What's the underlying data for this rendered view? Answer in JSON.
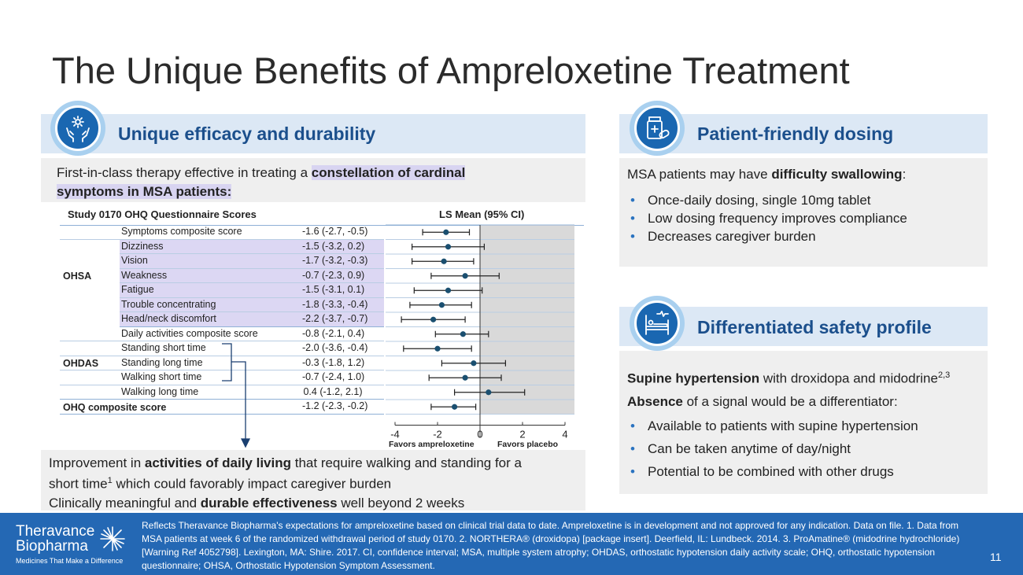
{
  "title": "The Unique Benefits of Ampreloxetine Treatment",
  "left_panel": {
    "header": "Unique efficacy and durability",
    "intro_prefix": "First-in-class therapy effective in treating a ",
    "intro_highlight_1": "constellation of cardinal",
    "intro_highlight_2": "symptoms in MSA patients:",
    "table_title": "Study 0170 OHQ Questionnaire Scores",
    "ls_mean_label": "LS Mean (95% CI)",
    "group_ohsa": "OHSA",
    "group_ohdas": "OHDAS",
    "composite_label": "OHQ composite score",
    "favors_left": "Favors ampreloxetine",
    "favors_right": "Favors placebo",
    "bottom_1_prefix": "Improvement in ",
    "bottom_1_bold": "activities of daily living",
    "bottom_1_suffix": " that require walking and standing for a",
    "bottom_1_line2": "short time",
    "bottom_1_sup": "1",
    "bottom_1_line2_suffix": " which could favorably impact caregiver burden",
    "bottom_2_prefix": "Clinically meaningful and ",
    "bottom_2_bold": "durable effectiveness",
    "bottom_2_suffix": " well beyond 2 weeks"
  },
  "chart_data": {
    "type": "forest",
    "title": "Study 0170 OHQ Questionnaire Scores",
    "xlabel": "LS Mean (95% CI)",
    "xlim": [
      -4,
      4
    ],
    "xticks": [
      "-4",
      "-2",
      "0",
      "2",
      "4"
    ],
    "rows": [
      {
        "group": "OHSA",
        "label": "Symptoms composite score",
        "ci_text": "-1.6 (-2.7, -0.5)",
        "mean": -1.6,
        "low": -2.7,
        "high": -0.5
      },
      {
        "group": "OHSA",
        "label": "Dizziness",
        "ci_text": "-1.5 (-3.2, 0.2)",
        "mean": -1.5,
        "low": -3.2,
        "high": 0.2
      },
      {
        "group": "OHSA",
        "label": "Vision",
        "ci_text": "-1.7 (-3.2, -0.3)",
        "mean": -1.7,
        "low": -3.2,
        "high": -0.3
      },
      {
        "group": "OHSA",
        "label": "Weakness",
        "ci_text": "-0.7 (-2.3, 0.9)",
        "mean": -0.7,
        "low": -2.3,
        "high": 0.9
      },
      {
        "group": "OHSA",
        "label": "Fatigue",
        "ci_text": "-1.5 (-3.1, 0.1)",
        "mean": -1.5,
        "low": -3.1,
        "high": 0.1
      },
      {
        "group": "OHSA",
        "label": "Trouble concentrating",
        "ci_text": "-1.8 (-3.3, -0.4)",
        "mean": -1.8,
        "low": -3.3,
        "high": -0.4
      },
      {
        "group": "OHSA",
        "label": "Head/neck discomfort",
        "ci_text": "-2.2 (-3.7, -0.7)",
        "mean": -2.2,
        "low": -3.7,
        "high": -0.7
      },
      {
        "group": "OHDAS",
        "label": "Daily activities composite score",
        "ci_text": "-0.8 (-2.1, 0.4)",
        "mean": -0.8,
        "low": -2.1,
        "high": 0.4
      },
      {
        "group": "OHDAS",
        "label": "Standing short time",
        "ci_text": "-2.0 (-3.6, -0.4)",
        "mean": -2.0,
        "low": -3.6,
        "high": -0.4
      },
      {
        "group": "OHDAS",
        "label": "Standing long time",
        "ci_text": "-0.3 (-1.8, 1.2)",
        "mean": -0.3,
        "low": -1.8,
        "high": 1.2
      },
      {
        "group": "OHDAS",
        "label": "Walking short time",
        "ci_text": "-0.7 (-2.4, 1.0)",
        "mean": -0.7,
        "low": -2.4,
        "high": 1.0
      },
      {
        "group": "OHDAS",
        "label": "Walking long time",
        "ci_text": "0.4 (-1.2, 2.1)",
        "mean": 0.4,
        "low": -1.2,
        "high": 2.1
      },
      {
        "group": "OHQ",
        "label": "OHQ composite score",
        "ci_text": "-1.2 (-2.3, -0.2)",
        "mean": -1.2,
        "low": -2.3,
        "high": -0.2
      }
    ]
  },
  "right_top": {
    "header": "Patient-friendly dosing",
    "intro_prefix": "MSA patients may have ",
    "intro_bold": "difficulty swallowing",
    "intro_suffix": ":",
    "bullets": [
      "Once-daily dosing, single 10mg tablet",
      "Low dosing frequency improves compliance",
      "Decreases caregiver burden"
    ]
  },
  "right_bottom": {
    "header": "Differentiated safety profile",
    "line1_bold": "Supine hypertension",
    "line1_suffix": " with droxidopa and midodrine",
    "line1_sup": "2,3",
    "line2_bold": "Absence",
    "line2_suffix": " of a signal would be a differentiator:",
    "bullets": [
      "Available to patients with supine hypertension",
      "Can be taken anytime of day/night",
      "Potential to be combined with other drugs"
    ]
  },
  "footer": {
    "logo_line1": "Theravance",
    "logo_line2": "Biopharma",
    "tagline": "Medicines That Make a Difference",
    "disclaimer": "Reflects Theravance Biopharma's expectations for ampreloxetine based on clinical trial data to date. Ampreloxetine is in development and not approved for any indication. Data on file. 1. Data from MSA patients at week 6 of the randomized withdrawal period of study 0170.  2. NORTHERA® (droxidopa) [package insert]. Deerfield, IL: Lundbeck. 2014.  3. ProAmatine® (midodrine hydrochloride) [Warning Ref 4052798]. Lexington, MA: Shire. 2017.  CI, confidence interval; MSA, multiple system atrophy; OHDAS, orthostatic hypotension daily activity scale; OHQ, orthostatic hypotension questionnaire; OHSA, Orthostatic Hypotension Symptom Assessment.",
    "page_number": "11"
  },
  "colors": {
    "accent": "#1b4f8c",
    "header_bg": "#dce8f5",
    "footer_bg": "#2468b4",
    "highlight": "#d8d4f1",
    "marker": "#1a4f70"
  }
}
